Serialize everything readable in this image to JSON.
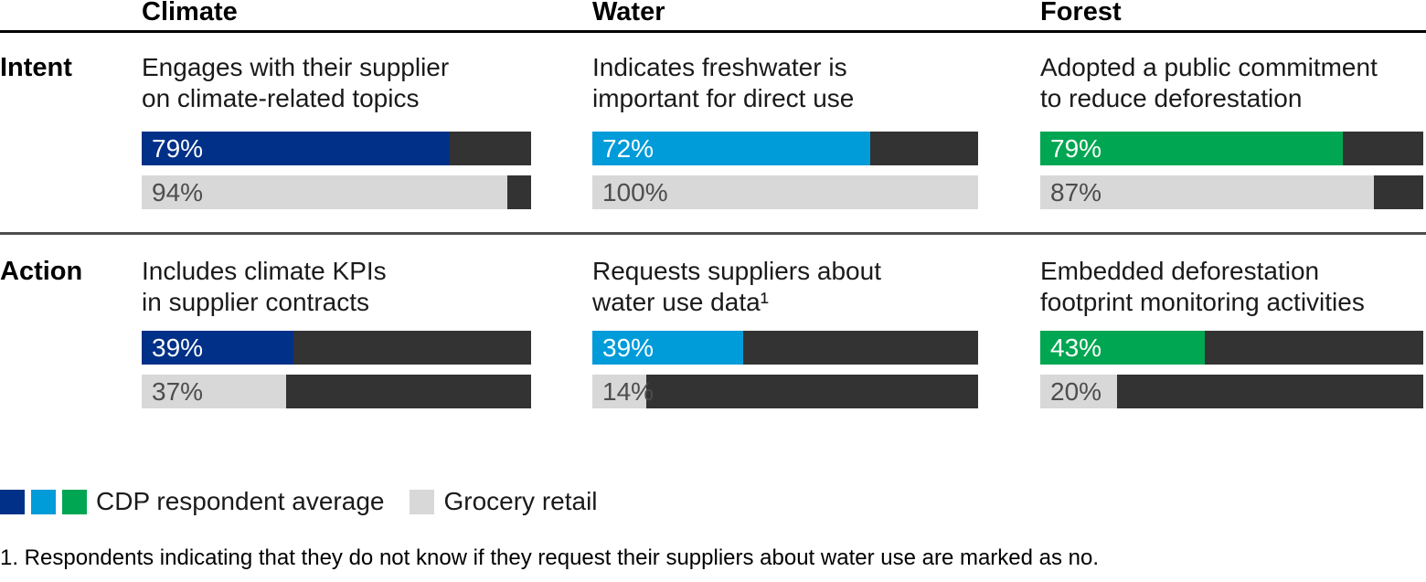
{
  "chart_data": {
    "type": "bar",
    "unit": "%",
    "xlim": [
      0,
      100
    ],
    "orientation": "horizontal",
    "columns": [
      {
        "label": "Climate",
        "color": "#003087"
      },
      {
        "label": "Water",
        "color": "#009bd9"
      },
      {
        "label": "Forest",
        "color": "#00a651"
      }
    ],
    "rows": [
      {
        "label": "Intent"
      },
      {
        "label": "Action"
      }
    ],
    "series_names": [
      "CDP respondent average",
      "Grocery retail"
    ],
    "cells": [
      {
        "row": "Intent",
        "column": "Climate",
        "line1": "Engages with their supplier",
        "line2": "on climate-related topics",
        "color": "#003087",
        "cdp": 79,
        "cdp_label": "79%",
        "grocery": 94,
        "grocery_label": "94%"
      },
      {
        "row": "Intent",
        "column": "Water",
        "line1": "Indicates freshwater is",
        "line2": "important for direct use",
        "color": "#009bd9",
        "cdp": 72,
        "cdp_label": "72%",
        "grocery": 100,
        "grocery_label": "100%"
      },
      {
        "row": "Intent",
        "column": "Forest",
        "line1": "Adopted a public commitment",
        "line2": "to reduce deforestation",
        "color": "#00a651",
        "cdp": 79,
        "cdp_label": "79%",
        "grocery": 87,
        "grocery_label": "87%"
      },
      {
        "row": "Action",
        "column": "Climate",
        "line1": "Includes climate KPIs",
        "line2": "in supplier contracts",
        "color": "#003087",
        "cdp": 39,
        "cdp_label": "39%",
        "grocery": 37,
        "grocery_label": "37%"
      },
      {
        "row": "Action",
        "column": "Water",
        "line1": "Requests suppliers about",
        "line2": "water use data¹",
        "color": "#009bd9",
        "cdp": 39,
        "cdp_label": "39%",
        "grocery": 14,
        "grocery_label": "14%"
      },
      {
        "row": "Action",
        "column": "Forest",
        "line1": "Embedded deforestation",
        "line2": "footprint monitoring activities",
        "color": "#00a651",
        "cdp": 43,
        "cdp_label": "43%",
        "grocery": 20,
        "grocery_label": "20%"
      }
    ]
  },
  "colors": {
    "climate": "#003087",
    "water": "#009bd9",
    "forest": "#00a651",
    "track": "#333333",
    "grocery": "#d8d8d8",
    "rule_top": "#000000",
    "rule_mid": "#4d4d4d"
  },
  "legend": {
    "cdp_label": "CDP respondent average",
    "grocery_label": "Grocery retail"
  },
  "footnote": "1. Respondents indicating that they do not know if they request their suppliers about water use are marked as no."
}
